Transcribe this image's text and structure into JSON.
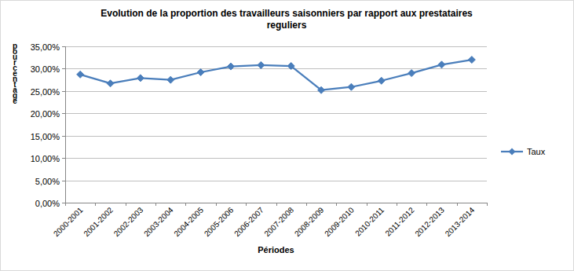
{
  "chart_data": {
    "type": "line",
    "title": "Evolution de la proportion des travailleurs saisonniers par rapport aux prestataires reguliers",
    "x_label": "Périodes",
    "y_label": "pourcentage",
    "categories": [
      "2000-2001",
      "2001-2002",
      "2002-2003",
      "2003-2004",
      "2004-2005",
      "2005-2006",
      "2006-2007",
      "2007-2008",
      "2008-2009",
      "2009-2010",
      "2010-2011",
      "2011-2012",
      "2012-2013",
      "2013-2014"
    ],
    "series": [
      {
        "name": "Taux",
        "color": "#4a7ebb",
        "marker": "diamond",
        "values": [
          28.7,
          26.7,
          27.9,
          27.5,
          29.2,
          30.5,
          30.8,
          30.6,
          25.2,
          25.9,
          27.3,
          29.0,
          30.9,
          32.0
        ]
      }
    ],
    "ylim": [
      0,
      35
    ],
    "yticks": [
      {
        "value": 0,
        "label": "0,00%"
      },
      {
        "value": 5,
        "label": "5,00%"
      },
      {
        "value": 10,
        "label": "10,00%"
      },
      {
        "value": 15,
        "label": "15,00%"
      },
      {
        "value": 20,
        "label": "20,00%"
      },
      {
        "value": 25,
        "label": "25,00%"
      },
      {
        "value": 30,
        "label": "30,00%"
      },
      {
        "value": 35,
        "label": "35,00%"
      }
    ],
    "grid": true,
    "legend": "right"
  }
}
